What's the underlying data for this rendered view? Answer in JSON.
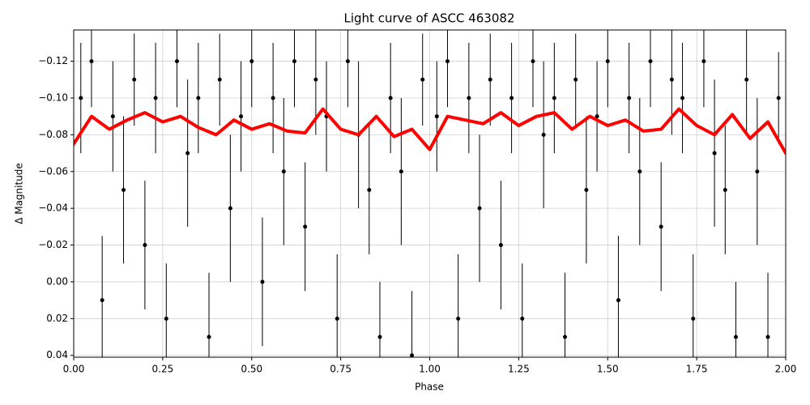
{
  "chart_data": {
    "type": "errorbar",
    "title": "Light curve of ASCC 463082",
    "xlabel": "Phase",
    "ylabel": "Δ Magnitude",
    "xlim": [
      0,
      2
    ],
    "ylim": [
      0.041,
      -0.137
    ],
    "xticks": [
      {
        "value": 0,
        "label": "0.00"
      },
      0.25,
      {
        "value": 0.5,
        "label": "0.50"
      },
      0.75,
      {
        "value": 1,
        "label": "1.00"
      },
      1.25,
      {
        "value": 1.5,
        "label": "1.50"
      },
      1.75,
      {
        "value": 2,
        "label": "2.00"
      }
    ],
    "yticks": [
      {
        "value": -0.12,
        "label": "−0.12"
      },
      {
        "value": -0.1,
        "label": "−0.10"
      },
      {
        "value": -0.08,
        "label": "−0.08"
      },
      {
        "value": -0.06,
        "label": "−0.06"
      },
      {
        "value": -0.04,
        "label": "−0.04"
      },
      {
        "value": -0.02,
        "label": "−0.02"
      },
      {
        "value": 0,
        "label": "0.00"
      },
      0.02,
      0.04
    ],
    "grid": true,
    "series": [
      {
        "type": "errorbar",
        "color": "#000000",
        "x": [
          0.02,
          0.05,
          0.08,
          0.11,
          0.14,
          0.17,
          0.2,
          0.23,
          0.26,
          0.29,
          0.32,
          0.35,
          0.38,
          0.41,
          0.44,
          0.47,
          0.5,
          0.53,
          0.56,
          0.59,
          0.62,
          0.65,
          0.68,
          0.71,
          0.74,
          0.77,
          0.8,
          0.83,
          0.86,
          0.89,
          0.92,
          0.95,
          0.98,
          1.02,
          1.05,
          1.08,
          1.11,
          1.14,
          1.17,
          1.2,
          1.23,
          1.26,
          1.29,
          1.32,
          1.35,
          1.38,
          1.41,
          1.44,
          1.47,
          1.5,
          1.53,
          1.56,
          1.59,
          1.62,
          1.65,
          1.68,
          1.71,
          1.74,
          1.77,
          1.8,
          1.83,
          1.86,
          1.89,
          1.92,
          1.95,
          1.98
        ],
        "values": [
          -0.1,
          -0.12,
          0.01,
          -0.09,
          -0.05,
          -0.11,
          -0.02,
          -0.1,
          0.02,
          -0.12,
          -0.07,
          -0.1,
          0.03,
          -0.11,
          -0.04,
          -0.09,
          -0.12,
          0.0,
          -0.1,
          -0.06,
          -0.12,
          -0.03,
          -0.11,
          -0.09,
          0.02,
          -0.12,
          -0.08,
          -0.05,
          0.03,
          -0.1,
          -0.06,
          0.04,
          -0.11,
          -0.09,
          -0.12,
          0.02,
          -0.1,
          -0.04,
          -0.11,
          -0.02,
          -0.1,
          0.02,
          -0.12,
          -0.08,
          -0.1,
          0.03,
          -0.11,
          -0.05,
          -0.09,
          -0.12,
          0.01,
          -0.1,
          -0.06,
          -0.12,
          -0.03,
          -0.11,
          -0.1,
          0.02,
          -0.12,
          -0.07,
          -0.05,
          0.03,
          -0.11,
          -0.06,
          0.03,
          -0.1
        ],
        "errors": [
          0.03,
          0.025,
          0.035,
          0.03,
          0.04,
          0.025,
          0.035,
          0.03,
          0.03,
          0.025,
          0.04,
          0.03,
          0.035,
          0.025,
          0.04,
          0.03,
          0.025,
          0.035,
          0.03,
          0.04,
          0.025,
          0.035,
          0.03,
          0.03,
          0.035,
          0.025,
          0.04,
          0.035,
          0.03,
          0.03,
          0.04,
          0.035,
          0.025,
          0.03,
          0.025,
          0.035,
          0.03,
          0.04,
          0.025,
          0.035,
          0.03,
          0.03,
          0.025,
          0.04,
          0.03,
          0.035,
          0.025,
          0.04,
          0.03,
          0.025,
          0.035,
          0.03,
          0.04,
          0.025,
          0.035,
          0.03,
          0.03,
          0.035,
          0.025,
          0.04,
          0.035,
          0.03,
          0.03,
          0.04,
          0.035,
          0.025
        ]
      },
      {
        "type": "line",
        "color": "#ff0000",
        "x": [
          0,
          0.05,
          0.1,
          0.15,
          0.2,
          0.25,
          0.3,
          0.35,
          0.4,
          0.45,
          0.5,
          0.55,
          0.6,
          0.65,
          0.7,
          0.75,
          0.8,
          0.85,
          0.9,
          0.95,
          1,
          1.05,
          1.1,
          1.15,
          1.2,
          1.25,
          1.3,
          1.35,
          1.4,
          1.45,
          1.5,
          1.55,
          1.6,
          1.65,
          1.7,
          1.75,
          1.8,
          1.85,
          1.9,
          1.95,
          2
        ],
        "values": [
          -0.075,
          -0.09,
          -0.083,
          -0.088,
          -0.092,
          -0.087,
          -0.09,
          -0.084,
          -0.08,
          -0.088,
          -0.083,
          -0.086,
          -0.082,
          -0.081,
          -0.094,
          -0.083,
          -0.08,
          -0.09,
          -0.079,
          -0.083,
          -0.072,
          -0.09,
          -0.088,
          -0.086,
          -0.092,
          -0.085,
          -0.09,
          -0.092,
          -0.083,
          -0.09,
          -0.085,
          -0.088,
          -0.082,
          -0.083,
          -0.094,
          -0.085,
          -0.08,
          -0.091,
          -0.078,
          -0.087,
          -0.07
        ]
      }
    ]
  }
}
